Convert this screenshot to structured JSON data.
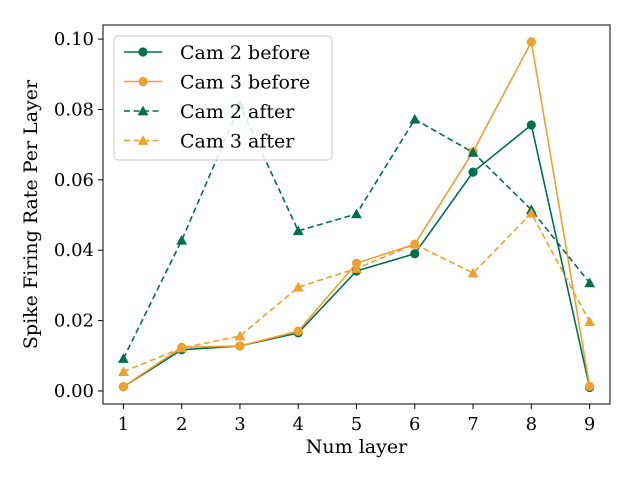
{
  "chart_data": {
    "type": "line",
    "title": "",
    "xlabel": "Num layer",
    "ylabel": "Spike Firing Rate Per Layer",
    "x": [
      1,
      2,
      3,
      4,
      5,
      6,
      7,
      8,
      9
    ],
    "xticks": [
      "1",
      "2",
      "3",
      "4",
      "5",
      "6",
      "7",
      "8",
      "9"
    ],
    "yticks": [
      "0.00",
      "0.02",
      "0.04",
      "0.06",
      "0.08",
      "0.10"
    ],
    "ytick_values": [
      0.0,
      0.02,
      0.04,
      0.06,
      0.08,
      0.1
    ],
    "xlim": [
      0.65,
      9.35
    ],
    "ylim": [
      -0.0037,
      0.104
    ],
    "grid": false,
    "legend_position": "top-left",
    "series": [
      {
        "name": "Cam 2 before",
        "color": "#00704a",
        "style": "solid",
        "marker": "circle",
        "values": [
          0.0012,
          0.0117,
          0.0128,
          0.0165,
          0.0341,
          0.039,
          0.0622,
          0.0756,
          0.001
        ]
      },
      {
        "name": "Cam 3 before",
        "color": "#f0a030",
        "style": "solid",
        "marker": "circle",
        "values": [
          0.0012,
          0.0124,
          0.0128,
          0.017,
          0.0363,
          0.0417,
          0.068,
          0.0992,
          0.0013
        ]
      },
      {
        "name": "Cam 2 after",
        "color": "#00704a",
        "style": "dashed",
        "marker": "triangle",
        "values": [
          0.0092,
          0.0428,
          0.0812,
          0.0455,
          0.0503,
          0.0772,
          0.0678,
          0.0515,
          0.0307
        ]
      },
      {
        "name": "Cam 3 after",
        "color": "#f0a030",
        "style": "dashed",
        "marker": "triangle",
        "values": [
          0.0055,
          0.0122,
          0.0156,
          0.0295,
          0.0348,
          0.0417,
          0.0335,
          0.0505,
          0.0197
        ]
      }
    ]
  }
}
